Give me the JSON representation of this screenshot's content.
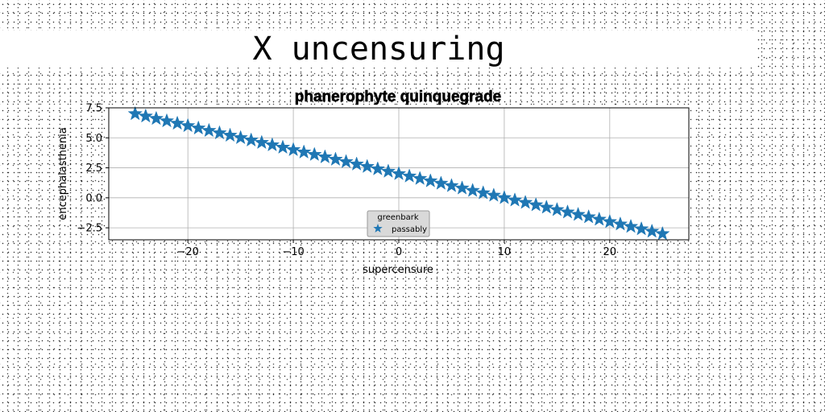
{
  "page": {
    "title": "X uncensuring"
  },
  "chart_data": {
    "type": "scatter",
    "title": "phanerophyte quinquegrade",
    "xlabel": "supercensure",
    "ylabel": "encephalasthenia",
    "xlim": [
      -27.5,
      27.5
    ],
    "ylim": [
      -3.5,
      7.5
    ],
    "xticks": [
      -20,
      -10,
      0,
      10,
      20
    ],
    "xtick_labels": [
      "−20",
      "−10",
      "0",
      "10",
      "20"
    ],
    "yticks": [
      -2.5,
      0.0,
      2.5,
      5.0,
      7.5
    ],
    "ytick_labels": [
      "−2.5",
      "0.0",
      "2.5",
      "5.0",
      "7.5"
    ],
    "grid": true,
    "legend": {
      "title": "greenbark",
      "placement": "bottom-center"
    },
    "series": [
      {
        "name": "passably",
        "marker": "star",
        "color": "#1f77b4",
        "x": [
          -25.0,
          -24.0,
          -23.0,
          -22.0,
          -21.0,
          -20.0,
          -19.0,
          -18.0,
          -17.0,
          -16.0,
          -15.0,
          -14.0,
          -13.0,
          -12.0,
          -11.0,
          -10.0,
          -9.0,
          -8.0,
          -7.0,
          -6.0,
          -5.0,
          -4.0,
          -3.0,
          -2.0,
          -1.0,
          0.0,
          1.0,
          2.0,
          3.0,
          4.0,
          5.0,
          6.0,
          7.0,
          8.0,
          9.0,
          10.0,
          11.0,
          12.0,
          13.0,
          14.0,
          15.0,
          16.0,
          17.0,
          18.0,
          19.0,
          20.0,
          21.0,
          22.0,
          23.0,
          24.0,
          25.0
        ],
        "y": [
          7.0,
          6.8,
          6.6,
          6.4,
          6.2,
          6.0,
          5.8,
          5.6,
          5.4,
          5.2,
          5.0,
          4.8,
          4.6,
          4.4,
          4.2,
          4.0,
          3.8,
          3.6,
          3.4,
          3.2,
          3.0,
          2.8,
          2.6,
          2.4,
          2.2,
          2.0,
          1.8,
          1.6,
          1.4,
          1.2,
          1.0,
          0.8,
          0.6,
          0.4,
          0.2,
          0.0,
          -0.2,
          -0.4,
          -0.6,
          -0.8,
          -1.0,
          -1.2,
          -1.4,
          -1.6,
          -1.8,
          -2.0,
          -2.2,
          -2.4,
          -2.6,
          -2.8,
          -3.0
        ]
      }
    ]
  }
}
